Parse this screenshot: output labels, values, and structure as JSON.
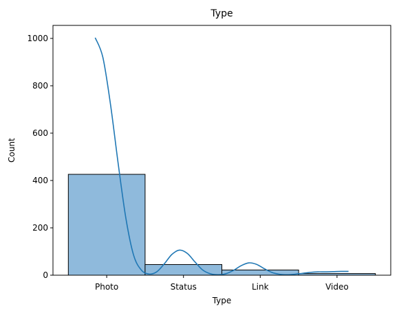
{
  "chart_data": {
    "type": "bar",
    "title": "Type",
    "xlabel": "Type",
    "ylabel": "Count",
    "categories": [
      "Photo",
      "Status",
      "Link",
      "Video"
    ],
    "values": [
      426,
      45,
      22,
      7
    ],
    "ylim": [
      0,
      1055
    ],
    "yticks": [
      0,
      200,
      400,
      600,
      800,
      1000
    ],
    "grid": false,
    "colors": {
      "bar_fill": "#8fbadc",
      "bar_edge": "#000000",
      "kde_line": "#1f77b4"
    },
    "kde": {
      "x": [
        -0.15,
        -0.05,
        0.05,
        0.15,
        0.25,
        0.35,
        0.45,
        0.55,
        0.65,
        0.75,
        0.85,
        0.95,
        1.05,
        1.15,
        1.25,
        1.35,
        1.45,
        1.55,
        1.65,
        1.75,
        1.85,
        1.95,
        2.05,
        2.15,
        2.25,
        2.35,
        2.45,
        2.55,
        2.65,
        2.75,
        2.85,
        2.95,
        3.05,
        3.15
      ],
      "y": [
        1003,
        920,
        720,
        470,
        240,
        85,
        22,
        5,
        14,
        48,
        88,
        106,
        92,
        56,
        22,
        6,
        2,
        6,
        20,
        40,
        52,
        46,
        28,
        12,
        4,
        2,
        4,
        8,
        12,
        14,
        14,
        15,
        16,
        16
      ]
    }
  }
}
